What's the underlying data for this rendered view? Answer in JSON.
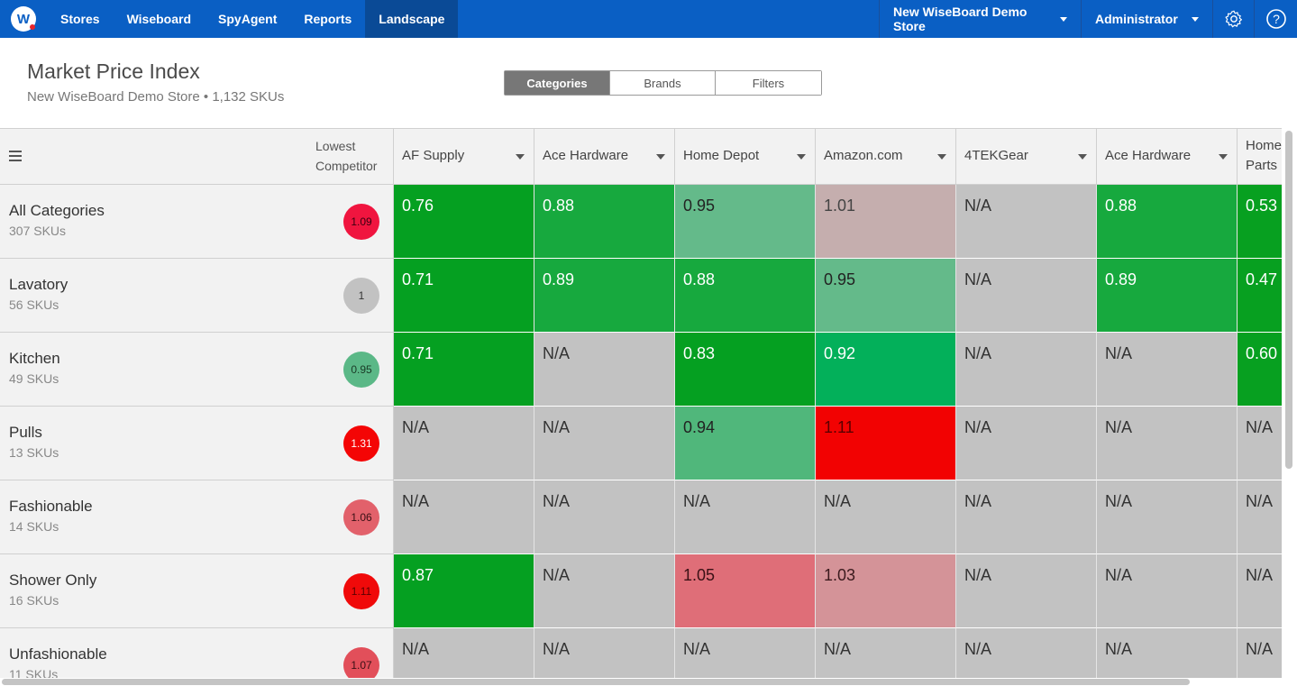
{
  "nav": {
    "logo_letter": "W",
    "items": [
      "Stores",
      "Wiseboard",
      "SpyAgent",
      "Reports",
      "Landscape"
    ],
    "active_index": 4,
    "store_selector": "New WiseBoard Demo Store",
    "user_menu": "Administrator",
    "settings_icon": "gear-icon",
    "help_icon": "help-icon",
    "help_glyph": "?"
  },
  "header": {
    "title": "Market Price Index",
    "subtitle": "New WiseBoard Demo Store • 1,132 SKUs"
  },
  "view_tabs": {
    "items": [
      "Categories",
      "Brands",
      "Filters"
    ],
    "active_index": 0
  },
  "table": {
    "lowest_label_line1": "Lowest",
    "lowest_label_line2": "Competitor",
    "competitors": [
      {
        "line1": "AF Supply",
        "line2": "",
        "dropdown": true
      },
      {
        "line1": "Ace Hardware",
        "line2": "",
        "dropdown": true
      },
      {
        "line1": "Home Depot",
        "line2": "",
        "dropdown": true
      },
      {
        "line1": "Amazon.com",
        "line2": "",
        "dropdown": true
      },
      {
        "line1": "4TEKGear",
        "line2": "",
        "dropdown": true
      },
      {
        "line1": "Ace Hardware",
        "line2": "",
        "dropdown": true
      },
      {
        "line1": "Home",
        "line2": "Parts",
        "dropdown": false
      }
    ],
    "rows": [
      {
        "name": "All Categories",
        "skus": "307 SKUs",
        "lowest": "1.09",
        "lowest_color": "#f0153f",
        "lowest_text": "#3a0010",
        "cells": [
          {
            "v": "0.76",
            "bg": "#05a021",
            "fg": "#ffffff"
          },
          {
            "v": "0.88",
            "bg": "#17a93e",
            "fg": "#ffffff"
          },
          {
            "v": "0.95",
            "bg": "#64ba8a",
            "fg": "#222222"
          },
          {
            "v": "1.01",
            "bg": "#c5aeae",
            "fg": "#444444"
          },
          {
            "v": "N/A",
            "bg": "#c2c2c2",
            "fg": "#333333"
          },
          {
            "v": "0.88",
            "bg": "#17a93e",
            "fg": "#ffffff"
          },
          {
            "v": "0.53",
            "bg": "#07a020",
            "fg": "#ffffff"
          }
        ]
      },
      {
        "name": "Lavatory",
        "skus": "56 SKUs",
        "lowest": "1",
        "lowest_color": "#c2c2c2",
        "lowest_text": "#333333",
        "cells": [
          {
            "v": "0.71",
            "bg": "#05a021",
            "fg": "#ffffff"
          },
          {
            "v": "0.89",
            "bg": "#17a93e",
            "fg": "#ffffff"
          },
          {
            "v": "0.88",
            "bg": "#17a93e",
            "fg": "#ffffff"
          },
          {
            "v": "0.95",
            "bg": "#64ba8a",
            "fg": "#222222"
          },
          {
            "v": "N/A",
            "bg": "#c2c2c2",
            "fg": "#333333"
          },
          {
            "v": "0.89",
            "bg": "#17a93e",
            "fg": "#ffffff"
          },
          {
            "v": "0.47",
            "bg": "#07a020",
            "fg": "#ffffff"
          }
        ]
      },
      {
        "name": "Kitchen",
        "skus": "49 SKUs",
        "lowest": "0.95",
        "lowest_color": "#5bb887",
        "lowest_text": "#1a3a26",
        "cells": [
          {
            "v": "0.71",
            "bg": "#05a021",
            "fg": "#ffffff"
          },
          {
            "v": "N/A",
            "bg": "#c2c2c2",
            "fg": "#333333"
          },
          {
            "v": "0.83",
            "bg": "#05a021",
            "fg": "#ffffff"
          },
          {
            "v": "0.92",
            "bg": "#03b05a",
            "fg": "#ffffff"
          },
          {
            "v": "N/A",
            "bg": "#c2c2c2",
            "fg": "#333333"
          },
          {
            "v": "N/A",
            "bg": "#c2c2c2",
            "fg": "#333333"
          },
          {
            "v": "0.60",
            "bg": "#07a020",
            "fg": "#ffffff"
          }
        ]
      },
      {
        "name": "Pulls",
        "skus": "13 SKUs",
        "lowest": "1.31",
        "lowest_color": "#f40505",
        "lowest_text": "#ffffff",
        "cells": [
          {
            "v": "N/A",
            "bg": "#c2c2c2",
            "fg": "#333333"
          },
          {
            "v": "N/A",
            "bg": "#c2c2c2",
            "fg": "#333333"
          },
          {
            "v": "0.94",
            "bg": "#50b77b",
            "fg": "#222222"
          },
          {
            "v": "1.11",
            "bg": "#f20202",
            "fg": "#5a0000"
          },
          {
            "v": "N/A",
            "bg": "#c2c2c2",
            "fg": "#333333"
          },
          {
            "v": "N/A",
            "bg": "#c2c2c2",
            "fg": "#333333"
          },
          {
            "v": "N/A",
            "bg": "#c2c2c2",
            "fg": "#333333"
          }
        ]
      },
      {
        "name": "Fashionable",
        "skus": "14 SKUs",
        "lowest": "1.06",
        "lowest_color": "#e2616b",
        "lowest_text": "#3a1015",
        "cells": [
          {
            "v": "N/A",
            "bg": "#c2c2c2",
            "fg": "#333333"
          },
          {
            "v": "N/A",
            "bg": "#c2c2c2",
            "fg": "#333333"
          },
          {
            "v": "N/A",
            "bg": "#c2c2c2",
            "fg": "#333333"
          },
          {
            "v": "N/A",
            "bg": "#c2c2c2",
            "fg": "#333333"
          },
          {
            "v": "N/A",
            "bg": "#c2c2c2",
            "fg": "#333333"
          },
          {
            "v": "N/A",
            "bg": "#c2c2c2",
            "fg": "#333333"
          },
          {
            "v": "N/A",
            "bg": "#c2c2c2",
            "fg": "#333333"
          }
        ]
      },
      {
        "name": "Shower Only",
        "skus": "16 SKUs",
        "lowest": "1.11",
        "lowest_color": "#f00a0a",
        "lowest_text": "#5a0000",
        "cells": [
          {
            "v": "0.87",
            "bg": "#05a021",
            "fg": "#ffffff"
          },
          {
            "v": "N/A",
            "bg": "#c2c2c2",
            "fg": "#333333"
          },
          {
            "v": "1.05",
            "bg": "#df6e78",
            "fg": "#3a1015"
          },
          {
            "v": "1.03",
            "bg": "#d49398",
            "fg": "#3a1a1d"
          },
          {
            "v": "N/A",
            "bg": "#c2c2c2",
            "fg": "#333333"
          },
          {
            "v": "N/A",
            "bg": "#c2c2c2",
            "fg": "#333333"
          },
          {
            "v": "N/A",
            "bg": "#c2c2c2",
            "fg": "#333333"
          }
        ]
      },
      {
        "name": "Unfashionable",
        "skus": "11 SKUs",
        "lowest": "1.07",
        "lowest_color": "#e24f5a",
        "lowest_text": "#3a1015",
        "cells": [
          {
            "v": "N/A",
            "bg": "#c2c2c2",
            "fg": "#333333"
          },
          {
            "v": "N/A",
            "bg": "#c2c2c2",
            "fg": "#333333"
          },
          {
            "v": "N/A",
            "bg": "#c2c2c2",
            "fg": "#333333"
          },
          {
            "v": "N/A",
            "bg": "#c2c2c2",
            "fg": "#333333"
          },
          {
            "v": "N/A",
            "bg": "#c2c2c2",
            "fg": "#333333"
          },
          {
            "v": "N/A",
            "bg": "#c2c2c2",
            "fg": "#333333"
          },
          {
            "v": "N/A",
            "bg": "#c2c2c2",
            "fg": "#333333"
          }
        ]
      }
    ]
  }
}
